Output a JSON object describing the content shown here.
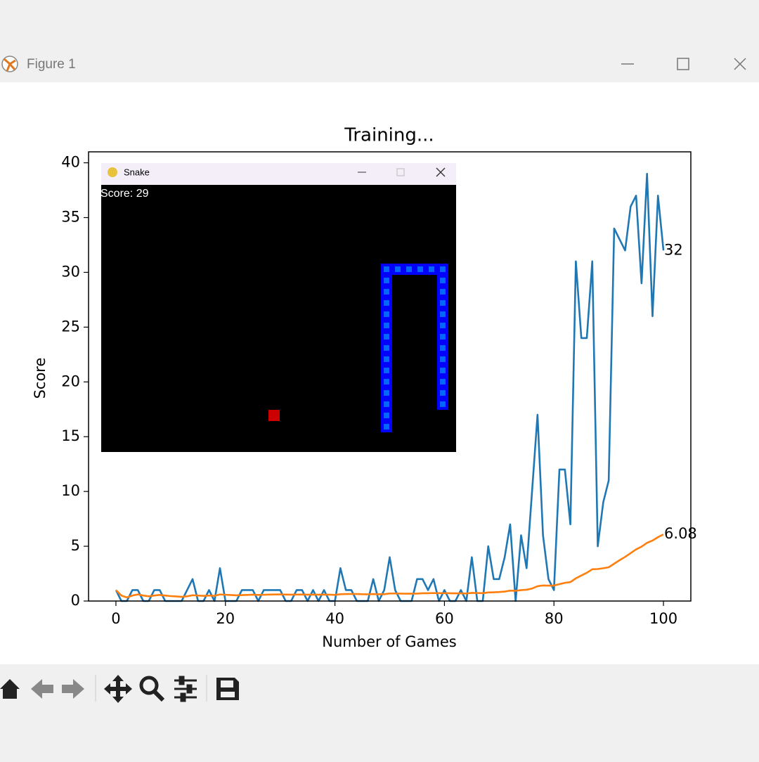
{
  "window": {
    "title": "Figure 1"
  },
  "overlay": {
    "title": "Snake",
    "score": "Score: 29"
  },
  "chart_data": {
    "type": "line",
    "title": "Training...",
    "x_label": "Number of Games",
    "y_label": "Score",
    "x": [
      0,
      1,
      2,
      3,
      4,
      5,
      6,
      7,
      8,
      9,
      10,
      11,
      12,
      13,
      14,
      15,
      16,
      17,
      18,
      19,
      20,
      21,
      22,
      23,
      24,
      25,
      26,
      27,
      28,
      29,
      30,
      31,
      32,
      33,
      34,
      35,
      36,
      37,
      38,
      39,
      40,
      41,
      42,
      43,
      44,
      45,
      46,
      47,
      48,
      49,
      50,
      51,
      52,
      53,
      54,
      55,
      56,
      57,
      58,
      59,
      60,
      61,
      62,
      63,
      64,
      65,
      66,
      67,
      68,
      69,
      70,
      71,
      72,
      73,
      74,
      75,
      76,
      77,
      78,
      79,
      80,
      81,
      82,
      83,
      84,
      85,
      86,
      87,
      88,
      89,
      90,
      91,
      92,
      93,
      94,
      95,
      96,
      97,
      98,
      99,
      100
    ],
    "series": [
      {
        "color": "#1f77b4",
        "values": [
          1,
          0,
          0,
          1,
          1,
          0,
          0,
          1,
          1,
          0,
          0,
          0,
          0,
          1,
          2,
          0,
          0,
          1,
          0,
          3,
          0,
          0,
          0,
          1,
          1,
          1,
          0,
          1,
          1,
          1,
          1,
          0,
          0,
          1,
          1,
          0,
          1,
          0,
          1,
          0,
          0,
          3,
          1,
          1,
          0,
          0,
          0,
          2,
          0,
          1,
          4,
          1,
          0,
          0,
          0,
          2,
          2,
          1,
          2,
          0,
          1,
          0,
          0,
          1,
          0,
          4,
          0,
          0,
          5,
          2,
          2,
          4,
          7,
          0,
          6,
          3,
          10,
          17,
          6,
          2,
          1,
          12,
          12,
          7,
          31,
          24,
          24,
          31,
          5,
          9,
          11,
          34,
          33,
          32,
          36,
          37,
          29,
          39,
          26,
          37,
          32
        ]
      },
      {
        "color": "#ff7f0e",
        "values": [
          1,
          0.5,
          0.33,
          0.5,
          0.6,
          0.5,
          0.43,
          0.5,
          0.56,
          0.5,
          0.45,
          0.42,
          0.38,
          0.43,
          0.53,
          0.5,
          0.47,
          0.5,
          0.47,
          0.6,
          0.57,
          0.55,
          0.52,
          0.54,
          0.56,
          0.58,
          0.56,
          0.57,
          0.59,
          0.6,
          0.61,
          0.59,
          0.58,
          0.59,
          0.6,
          0.58,
          0.59,
          0.58,
          0.59,
          0.58,
          0.56,
          0.62,
          0.64,
          0.65,
          0.64,
          0.62,
          0.61,
          0.64,
          0.62,
          0.62,
          0.69,
          0.69,
          0.68,
          0.67,
          0.67,
          0.68,
          0.71,
          0.71,
          0.73,
          0.72,
          0.72,
          0.71,
          0.7,
          0.7,
          0.69,
          0.74,
          0.73,
          0.72,
          0.78,
          0.8,
          0.82,
          0.86,
          0.95,
          0.93,
          1.0,
          1.03,
          1.14,
          1.35,
          1.42,
          1.41,
          1.41,
          1.54,
          1.66,
          1.73,
          2.07,
          2.33,
          2.58,
          2.9,
          2.92,
          2.99,
          3.08,
          3.41,
          3.73,
          4.03,
          4.37,
          4.71,
          4.96,
          5.31,
          5.52,
          5.83,
          6.08
        ]
      }
    ],
    "xlim": [
      -5,
      105
    ],
    "ylim": [
      0,
      41
    ],
    "xticks": [
      0,
      20,
      40,
      60,
      80,
      100
    ],
    "yticks": [
      0,
      5,
      10,
      15,
      20,
      25,
      30,
      35,
      40
    ],
    "grid": false
  }
}
